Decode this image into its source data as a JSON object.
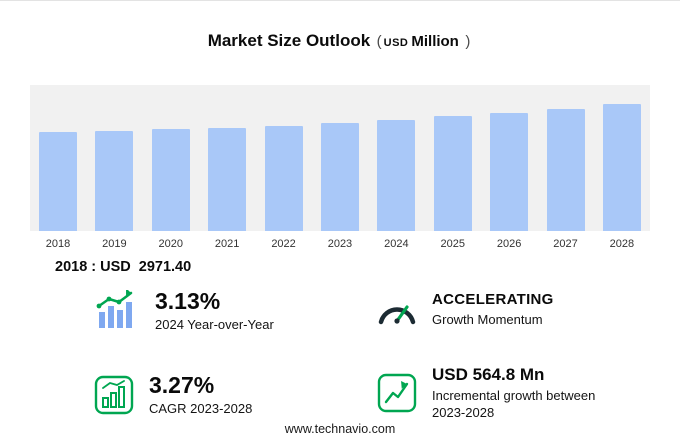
{
  "header": {
    "title": "Market Size Outlook",
    "open_paren": "(",
    "currency": "USD",
    "unit": "Million",
    "close_paren": ")"
  },
  "chart_data": {
    "type": "bar",
    "title": "Market Size Outlook (USD Million)",
    "categories": [
      "2018",
      "2019",
      "2020",
      "2021",
      "2022",
      "2023",
      "2024",
      "2025",
      "2026",
      "2027",
      "2028"
    ],
    "values": [
      2971.4,
      3008,
      3048,
      3095,
      3152,
      3236,
      3337,
      3442,
      3552,
      3672,
      3801
    ],
    "xlabel": "",
    "ylabel": "USD Million",
    "ylim": [
      0,
      3900
    ],
    "grid": false,
    "legend": false
  },
  "base_year": {
    "label": "2018 : USD",
    "value": "2971.40"
  },
  "stats": {
    "yoy": {
      "value": "3.13%",
      "label": "2024 Year-over-Year"
    },
    "momentum": {
      "value": "ACCELERATING",
      "label": "Growth Momentum"
    },
    "cagr": {
      "value": "3.27%",
      "label": "CAGR 2023-2028"
    },
    "incremental": {
      "value": "USD 564.8 Mn",
      "label": "Incremental growth between 2023-2028"
    }
  },
  "colors": {
    "bar_blue": "#a9c8f8",
    "icon_bar_blue": "#7fa8f0",
    "accent_green": "#00a651",
    "gauge_dark": "#1c2b33"
  },
  "footer": {
    "url": "www.technavio.com"
  }
}
